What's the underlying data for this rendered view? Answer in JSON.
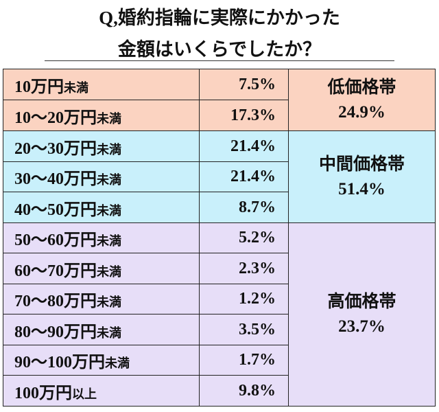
{
  "title": [
    "Q,婚約指輪に実際にかかった",
    "金額はいくらでしたか？"
  ],
  "groups": [
    {
      "label": "低価格帯",
      "total": "24.9%",
      "rows": [
        {
          "range": "10万円",
          "suffix": "未満",
          "percent": "7.5%"
        },
        {
          "range": "10〜20万円",
          "suffix": "未満",
          "percent": "17.3%"
        }
      ]
    },
    {
      "label": "中間価格帯",
      "total": "51.4%",
      "rows": [
        {
          "range": "20〜30万円",
          "suffix": "未満",
          "percent": "21.4%"
        },
        {
          "range": "30〜40万円",
          "suffix": "未満",
          "percent": "21.4%"
        },
        {
          "range": "40〜50万円",
          "suffix": "未満",
          "percent": "8.7%"
        }
      ]
    },
    {
      "label": "高価格帯",
      "total": "23.7%",
      "rows": [
        {
          "range": "50〜60万円",
          "suffix": "未満",
          "percent": "5.2%"
        },
        {
          "range": "60〜70万円",
          "suffix": "未満",
          "percent": "2.3%"
        },
        {
          "range": "70〜80万円",
          "suffix": "未満",
          "percent": "1.2%"
        },
        {
          "range": "80〜90万円",
          "suffix": "未満",
          "percent": "3.5%"
        },
        {
          "range": "90〜100万円",
          "suffix": "未満",
          "percent": "1.7%"
        },
        {
          "range": "100万円",
          "suffix": "以上",
          "percent": "9.8%"
        }
      ]
    }
  ]
}
